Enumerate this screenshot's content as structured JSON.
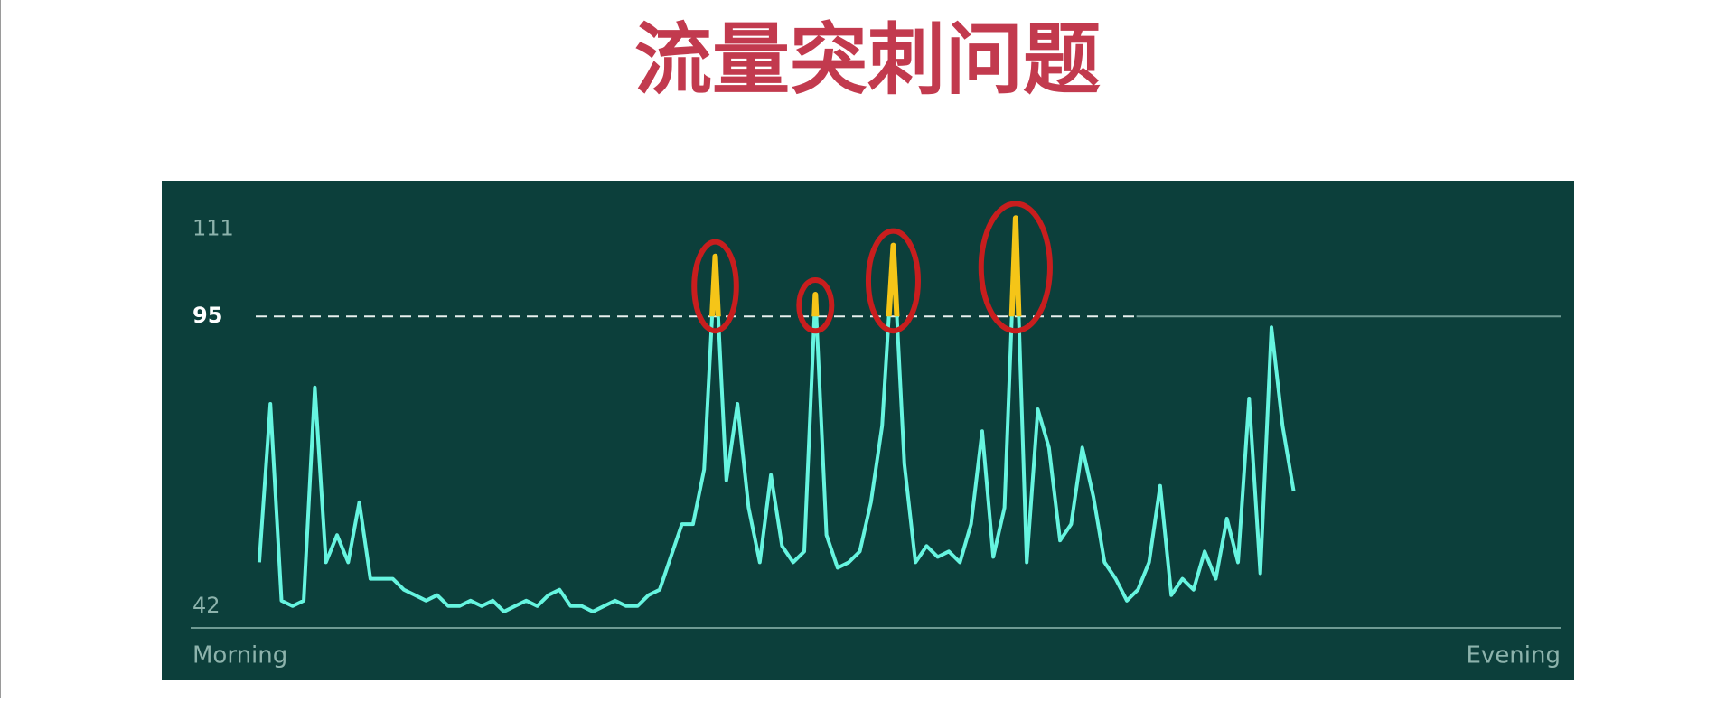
{
  "chart_data": {
    "type": "line",
    "title": "流量突刺问题",
    "xlabels": [
      "Morning",
      "Evening"
    ],
    "values": [
      null,
      null,
      null,
      null,
      null,
      null,
      50,
      79,
      43,
      42,
      43,
      82,
      50,
      55,
      50,
      61,
      47,
      47,
      47,
      45,
      44,
      43,
      44,
      42,
      42,
      43,
      42,
      43,
      41,
      42,
      43,
      42,
      44,
      45,
      42,
      42,
      41,
      42,
      43,
      42,
      42,
      44,
      45,
      51,
      57,
      57,
      67,
      106,
      65,
      79,
      60,
      50,
      66,
      53,
      50,
      52,
      99,
      55,
      49,
      50,
      52,
      61,
      75,
      108,
      68,
      50,
      53,
      51,
      52,
      50,
      57,
      74,
      51,
      60,
      113,
      50,
      78,
      71,
      54,
      57,
      71,
      62,
      50,
      47,
      43,
      45,
      50,
      64,
      44,
      47,
      45,
      52,
      47,
      58,
      50,
      80,
      48,
      93,
      75,
      63,
      null,
      null,
      null,
      null,
      null,
      null,
      null,
      null,
      null,
      null,
      null,
      null,
      null,
      null,
      null,
      null,
      null,
      null,
      null,
      null,
      null,
      null,
      null,
      null
    ],
    "color": "#66f5e0",
    "spike_color": "#f5c518",
    "threshold": 95,
    "ylim": [
      38,
      120
    ],
    "yticks": [
      42,
      95,
      111
    ]
  }
}
